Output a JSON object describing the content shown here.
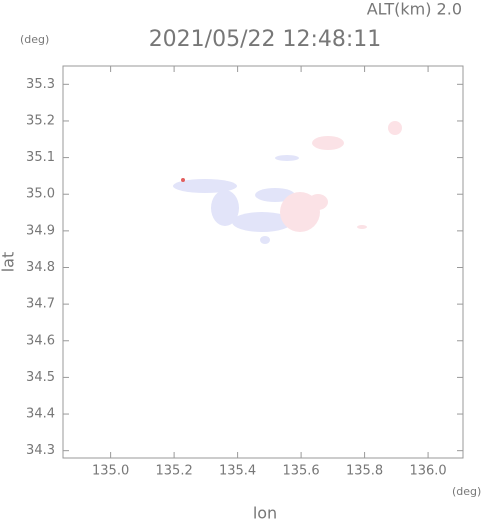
{
  "chart_data": {
    "type": "scatter",
    "title": "2021/05/22 12:48:11",
    "subtitle": "ALT(km) 2.0",
    "y_unit": "(deg)",
    "x_unit": "(deg)",
    "x_label": "lon",
    "y_label": "lat",
    "xlim": [
      134.85,
      136.11
    ],
    "ylim": [
      34.28,
      35.35
    ],
    "xticks": [
      {
        "value": 135.0,
        "label": "135.0"
      },
      135.2,
      135.4,
      135.6,
      135.8,
      {
        "value": 136.0,
        "label": "136.0"
      }
    ],
    "yticks": [
      35.3,
      35.2,
      35.1,
      {
        "value": 35.0,
        "label": "35.0"
      },
      34.9,
      34.8,
      34.7,
      34.6,
      34.5,
      34.4,
      34.3
    ]
  }
}
